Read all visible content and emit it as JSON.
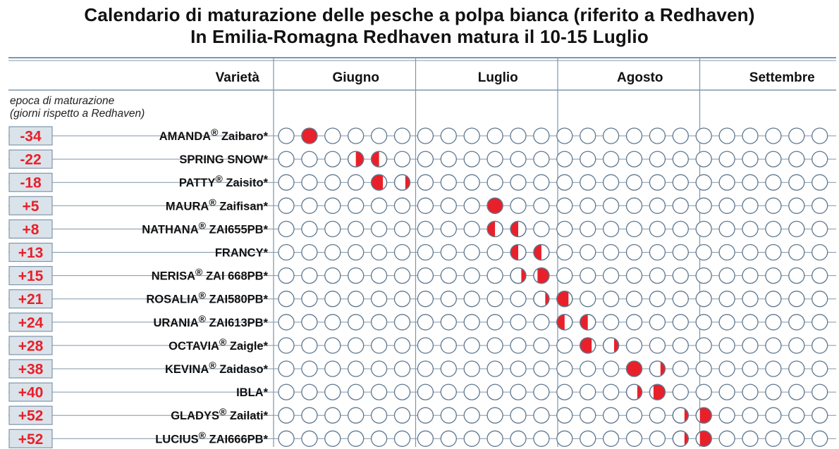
{
  "title_line1": "Calendario di maturazione delle pesche a polpa bianca (riferito a Redhaven)",
  "title_line2": "In Emilia-Romagna Redhaven matura il 10-15 Luglio",
  "chart_data": {
    "type": "table",
    "header_label": "Varietà",
    "months": [
      "Giugno",
      "Luglio",
      "Agosto",
      "Settembre"
    ],
    "slots_per_month": 6,
    "epoch_caption": [
      "epoca di maturazione",
      "(giorni rispetto a Redhaven)"
    ],
    "colors": {
      "ripe": "#e8202a",
      "circle_stroke": "#5f7890",
      "rule": "#7f95aa",
      "badge_fill": "#dbe3ea",
      "badge_text": "#e8202a"
    },
    "legend_note": "markers: fill = fraction of circle filled red; side = which half is filled",
    "varieties": [
      {
        "offset": "-34",
        "name": "AMANDA",
        "reg": "®",
        "code": " Zaibaro*",
        "marks": [
          {
            "slot": 1,
            "fill": 1.0,
            "side": "full"
          }
        ]
      },
      {
        "offset": "-22",
        "name": "SPRING SNOW*",
        "reg": "",
        "code": "",
        "marks": [
          {
            "slot": 3,
            "fill": 0.5,
            "side": "right"
          },
          {
            "slot": 4,
            "fill": 0.5,
            "side": "left"
          }
        ]
      },
      {
        "offset": "-18",
        "name": "PATTY",
        "reg": "®",
        "code": " Zaisito*",
        "marks": [
          {
            "slot": 4,
            "fill": 0.75,
            "side": "left"
          },
          {
            "slot": 5,
            "fill": 0.3,
            "side": "right"
          }
        ]
      },
      {
        "offset": "+5",
        "name": "MAURA",
        "reg": "®",
        "code": " Zaifisan*",
        "marks": [
          {
            "slot": 9,
            "fill": 1.0,
            "side": "full"
          }
        ]
      },
      {
        "offset": "+8",
        "name": "NATHANA",
        "reg": "®",
        "code": " ZAI655PB*",
        "marks": [
          {
            "slot": 9,
            "fill": 0.5,
            "side": "left"
          },
          {
            "slot": 10,
            "fill": 0.5,
            "side": "left"
          }
        ]
      },
      {
        "offset": "+13",
        "name": "FRANCY*",
        "reg": "",
        "code": "",
        "marks": [
          {
            "slot": 10,
            "fill": 0.5,
            "side": "left"
          },
          {
            "slot": 11,
            "fill": 0.5,
            "side": "left"
          }
        ]
      },
      {
        "offset": "+15",
        "name": "NERISA",
        "reg": "®",
        "code": " ZAI 668PB*",
        "marks": [
          {
            "slot": 10,
            "fill": 0.3,
            "side": "right"
          },
          {
            "slot": 11,
            "fill": 0.75,
            "side": "right"
          }
        ]
      },
      {
        "offset": "+21",
        "name": "ROSALIA",
        "reg": "®",
        "code": " ZAI580PB*",
        "marks": [
          {
            "slot": 11,
            "fill": 0.25,
            "side": "right"
          },
          {
            "slot": 12,
            "fill": 0.75,
            "side": "left"
          }
        ]
      },
      {
        "offset": "+24",
        "name": "URANIA",
        "reg": "®",
        "code": " ZAI613PB*",
        "marks": [
          {
            "slot": 12,
            "fill": 0.5,
            "side": "left"
          },
          {
            "slot": 13,
            "fill": 0.5,
            "side": "left"
          }
        ]
      },
      {
        "offset": "+28",
        "name": "OCTAVIA",
        "reg": "®",
        "code": " Zaigle*",
        "marks": [
          {
            "slot": 13,
            "fill": 0.75,
            "side": "left"
          },
          {
            "slot": 14,
            "fill": 0.3,
            "side": "right"
          }
        ]
      },
      {
        "offset": "+38",
        "name": "KEVINA",
        "reg": "®",
        "code": " Zaidaso*",
        "marks": [
          {
            "slot": 15,
            "fill": 1.0,
            "side": "full"
          },
          {
            "slot": 16,
            "fill": 0.3,
            "side": "right"
          }
        ]
      },
      {
        "offset": "+40",
        "name": "IBLA*",
        "reg": "",
        "code": "",
        "marks": [
          {
            "slot": 15,
            "fill": 0.3,
            "side": "right"
          },
          {
            "slot": 16,
            "fill": 0.75,
            "side": "right"
          }
        ]
      },
      {
        "offset": "+52",
        "name": "GLADYS",
        "reg": "®",
        "code": " Zailati*",
        "marks": [
          {
            "slot": 17,
            "fill": 0.25,
            "side": "right"
          },
          {
            "slot": 18,
            "fill": 0.75,
            "side": "right"
          }
        ]
      },
      {
        "offset": "+52",
        "name": "LUCIUS",
        "reg": "®",
        "code": " ZAI666PB*",
        "marks": [
          {
            "slot": 17,
            "fill": 0.25,
            "side": "right"
          },
          {
            "slot": 18,
            "fill": 0.75,
            "side": "right"
          }
        ]
      }
    ]
  }
}
